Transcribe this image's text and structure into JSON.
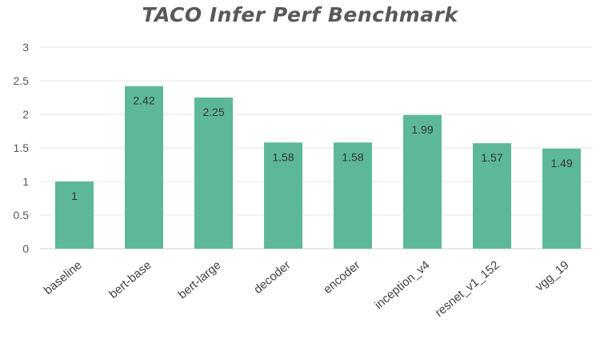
{
  "chart_data": {
    "type": "bar",
    "title": "TACO Infer Perf Benchmark",
    "categories": [
      "baseline",
      "bert-base",
      "bert-large",
      "decoder",
      "encoder",
      "inception_v4",
      "resnet_v1_152",
      "vgg_19"
    ],
    "values": [
      1,
      2.42,
      2.25,
      1.58,
      1.58,
      1.99,
      1.57,
      1.49
    ],
    "data_labels": [
      "1",
      "2.42",
      "2.25",
      "1.58",
      "1.58",
      "1.99",
      "1.57",
      "1.49"
    ],
    "ylim": [
      0,
      3
    ],
    "yticks": [
      "0",
      "0.5",
      "1",
      "1.5",
      "2",
      "2.5",
      "3"
    ],
    "xlabel": "",
    "ylabel": "",
    "grid": true,
    "legend": "none",
    "colors": {
      "bar": "#5db89a",
      "grid": "#e6e6e6",
      "axis": "#d0d0d0"
    }
  }
}
